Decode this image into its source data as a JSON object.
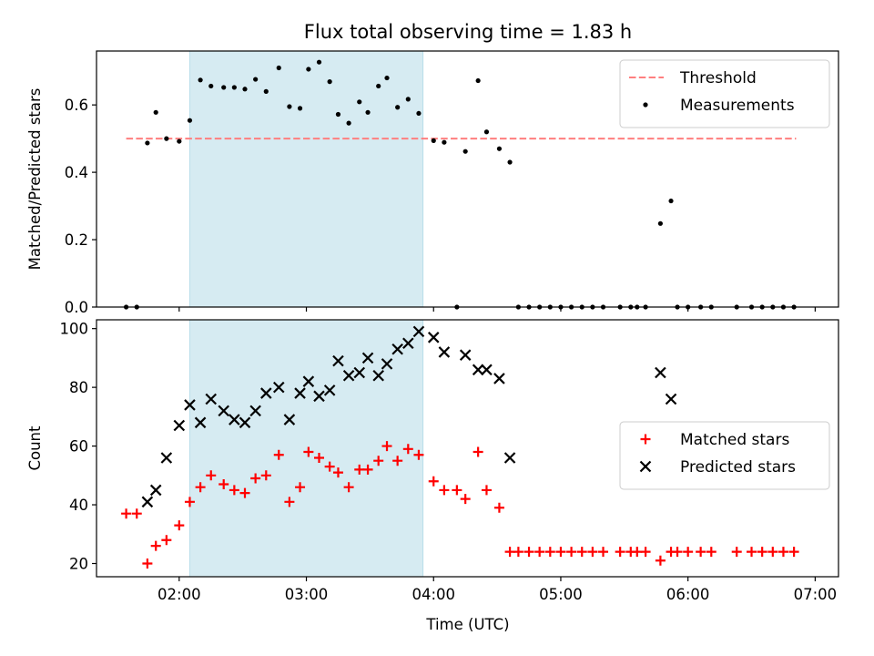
{
  "title": "Flux total observing time = 1.83 h",
  "xlabel": "Time (UTC)",
  "xticks": [
    "02:00",
    "03:00",
    "04:00",
    "05:00",
    "06:00",
    "07:00"
  ],
  "chart_data": [
    {
      "type": "scatter",
      "panel": "top",
      "title": "Flux total observing time = 1.83 h",
      "xlabel": "",
      "ylabel": "Matched/Predicted stars",
      "xlim": [
        "01:21",
        "07:11"
      ],
      "ylim": [
        0,
        0.76
      ],
      "yticks": [
        "0.0",
        "0.2",
        "0.4",
        "0.6"
      ],
      "grid": false,
      "legend_position": "top-right",
      "shaded_interval": {
        "x": [
          "02:05",
          "03:55"
        ],
        "color": "#add8e6"
      },
      "threshold": {
        "name": "Threshold",
        "y": 0.5,
        "x": [
          "01:35",
          "06:51"
        ],
        "color": "#ff7f7f",
        "style": "dashed"
      },
      "series": [
        {
          "name": "Measurements",
          "color": "#000000",
          "marker": "dot",
          "points": [
            [
              "01:35",
              0.0
            ],
            [
              "01:40",
              0.0
            ],
            [
              "01:45",
              0.487
            ],
            [
              "01:49",
              0.578
            ],
            [
              "01:54",
              0.5
            ],
            [
              "02:00",
              0.492
            ],
            [
              "02:05",
              0.554
            ],
            [
              "02:10",
              0.674
            ],
            [
              "02:15",
              0.656
            ],
            [
              "02:21",
              0.652
            ],
            [
              "02:26",
              0.652
            ],
            [
              "02:31",
              0.647
            ],
            [
              "02:36",
              0.676
            ],
            [
              "02:41",
              0.64
            ],
            [
              "02:47",
              0.71
            ],
            [
              "02:52",
              0.595
            ],
            [
              "02:57",
              0.59
            ],
            [
              "03:01",
              0.706
            ],
            [
              "03:06",
              0.727
            ],
            [
              "03:11",
              0.669
            ],
            [
              "03:15",
              0.572
            ],
            [
              "03:20",
              0.546
            ],
            [
              "03:25",
              0.609
            ],
            [
              "03:29",
              0.578
            ],
            [
              "03:34",
              0.656
            ],
            [
              "03:38",
              0.68
            ],
            [
              "03:43",
              0.593
            ],
            [
              "03:48",
              0.617
            ],
            [
              "03:53",
              0.575
            ],
            [
              "04:00",
              0.494
            ],
            [
              "04:05",
              0.489
            ],
            [
              "04:11",
              0.0
            ],
            [
              "04:15",
              0.462
            ],
            [
              "04:21",
              0.672
            ],
            [
              "04:25",
              0.52
            ],
            [
              "04:31",
              0.47
            ],
            [
              "04:36",
              0.43
            ],
            [
              "04:40",
              0.0
            ],
            [
              "04:45",
              0.0
            ],
            [
              "04:50",
              0.0
            ],
            [
              "04:55",
              0.0
            ],
            [
              "05:00",
              0.0
            ],
            [
              "05:05",
              0.0
            ],
            [
              "05:10",
              0.0
            ],
            [
              "05:15",
              0.0
            ],
            [
              "05:20",
              0.0
            ],
            [
              "05:28",
              0.0
            ],
            [
              "05:33",
              0.0
            ],
            [
              "05:36",
              0.0
            ],
            [
              "05:40",
              0.0
            ],
            [
              "05:47",
              0.248
            ],
            [
              "05:52",
              0.315
            ],
            [
              "05:55",
              0.0
            ],
            [
              "06:00",
              0.0
            ],
            [
              "06:06",
              0.0
            ],
            [
              "06:11",
              0.0
            ],
            [
              "06:23",
              0.0
            ],
            [
              "06:30",
              0.0
            ],
            [
              "06:35",
              0.0
            ],
            [
              "06:40",
              0.0
            ],
            [
              "06:45",
              0.0
            ],
            [
              "06:50",
              0.0
            ]
          ]
        }
      ]
    },
    {
      "type": "scatter",
      "panel": "bottom",
      "xlabel": "Time (UTC)",
      "ylabel": "Count",
      "xlim": [
        "01:21",
        "07:11"
      ],
      "ylim": [
        15.5,
        103
      ],
      "yticks": [
        "20",
        "40",
        "60",
        "80",
        "100"
      ],
      "grid": false,
      "legend_position": "center-right",
      "shaded_interval": {
        "x": [
          "02:05",
          "03:55"
        ],
        "color": "#add8e6"
      },
      "series": [
        {
          "name": "Matched stars",
          "color": "#ff0000",
          "marker": "plus",
          "points": [
            [
              "01:35",
              37
            ],
            [
              "01:40",
              37
            ],
            [
              "01:45",
              20
            ],
            [
              "01:49",
              26
            ],
            [
              "01:54",
              28
            ],
            [
              "02:00",
              33
            ],
            [
              "02:05",
              41
            ],
            [
              "02:10",
              46
            ],
            [
              "02:15",
              50
            ],
            [
              "02:21",
              47
            ],
            [
              "02:26",
              45
            ],
            [
              "02:31",
              44
            ],
            [
              "02:36",
              49
            ],
            [
              "02:41",
              50
            ],
            [
              "02:47",
              57
            ],
            [
              "02:52",
              41
            ],
            [
              "02:57",
              46
            ],
            [
              "03:01",
              58
            ],
            [
              "03:06",
              56
            ],
            [
              "03:11",
              53
            ],
            [
              "03:15",
              51
            ],
            [
              "03:20",
              46
            ],
            [
              "03:25",
              52
            ],
            [
              "03:29",
              52
            ],
            [
              "03:34",
              55
            ],
            [
              "03:38",
              60
            ],
            [
              "03:43",
              55
            ],
            [
              "03:48",
              59
            ],
            [
              "03:53",
              57
            ],
            [
              "04:00",
              48
            ],
            [
              "04:05",
              45
            ],
            [
              "04:11",
              45
            ],
            [
              "04:15",
              42
            ],
            [
              "04:21",
              58
            ],
            [
              "04:25",
              45
            ],
            [
              "04:31",
              39
            ],
            [
              "04:36",
              24
            ],
            [
              "04:40",
              24
            ],
            [
              "04:45",
              24
            ],
            [
              "04:50",
              24
            ],
            [
              "04:55",
              24
            ],
            [
              "05:00",
              24
            ],
            [
              "05:05",
              24
            ],
            [
              "05:10",
              24
            ],
            [
              "05:15",
              24
            ],
            [
              "05:20",
              24
            ],
            [
              "05:28",
              24
            ],
            [
              "05:33",
              24
            ],
            [
              "05:36",
              24
            ],
            [
              "05:40",
              24
            ],
            [
              "05:47",
              21
            ],
            [
              "05:52",
              24
            ],
            [
              "05:55",
              24
            ],
            [
              "06:00",
              24
            ],
            [
              "06:06",
              24
            ],
            [
              "06:11",
              24
            ],
            [
              "06:23",
              24
            ],
            [
              "06:30",
              24
            ],
            [
              "06:35",
              24
            ],
            [
              "06:40",
              24
            ],
            [
              "06:45",
              24
            ],
            [
              "06:50",
              24
            ]
          ]
        },
        {
          "name": "Predicted stars",
          "color": "#000000",
          "marker": "x",
          "points": [
            [
              "01:45",
              41
            ],
            [
              "01:49",
              45
            ],
            [
              "01:54",
              56
            ],
            [
              "02:00",
              67
            ],
            [
              "02:05",
              74
            ],
            [
              "02:10",
              68
            ],
            [
              "02:15",
              76
            ],
            [
              "02:21",
              72
            ],
            [
              "02:26",
              69
            ],
            [
              "02:31",
              68
            ],
            [
              "02:36",
              72
            ],
            [
              "02:41",
              78
            ],
            [
              "02:47",
              80
            ],
            [
              "02:52",
              69
            ],
            [
              "02:57",
              78
            ],
            [
              "03:01",
              82
            ],
            [
              "03:06",
              77
            ],
            [
              "03:11",
              79
            ],
            [
              "03:15",
              89
            ],
            [
              "03:20",
              84
            ],
            [
              "03:25",
              85
            ],
            [
              "03:29",
              90
            ],
            [
              "03:34",
              84
            ],
            [
              "03:38",
              88
            ],
            [
              "03:43",
              93
            ],
            [
              "03:48",
              95
            ],
            [
              "03:53",
              99
            ],
            [
              "04:00",
              97
            ],
            [
              "04:05",
              92
            ],
            [
              "04:15",
              91
            ],
            [
              "04:21",
              86
            ],
            [
              "04:25",
              86
            ],
            [
              "04:31",
              83
            ],
            [
              "04:36",
              56
            ],
            [
              "05:47",
              85
            ],
            [
              "05:52",
              76
            ]
          ]
        }
      ]
    }
  ]
}
